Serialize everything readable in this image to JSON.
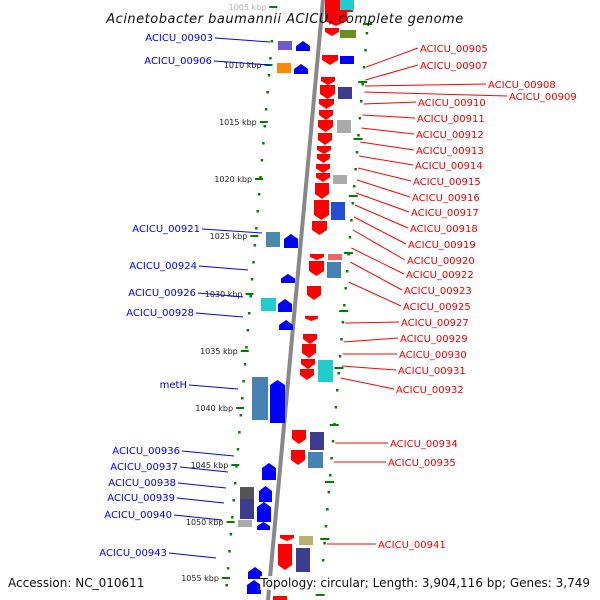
{
  "title": "Acinetobacter baumannii ACICU, complete genome",
  "accession": "Accession: NC_010611",
  "topology": "Topology: circular; Length: 3,904,116 bp; Genes: 3,749",
  "colors": {
    "forward": "#0000ff",
    "reverse": "#ff0000",
    "ticks": "#007700",
    "backbone": "#888888"
  },
  "kbp_ticks": [
    "1005 kbp",
    "1010 kbp",
    "1015 kbp",
    "1020 kbp",
    "1025 kbp",
    "1030 kbp",
    "1035 kbp",
    "1040 kbp",
    "1045 kbp",
    "1050 kbp",
    "1055 kbp"
  ],
  "left_labels": [
    "ACICU_00903",
    "ACICU_00906",
    "ACICU_00921",
    "ACICU_00924",
    "ACICU_00926",
    "ACICU_00928",
    "metH",
    "ACICU_00936",
    "ACICU_00937",
    "ACICU_00938",
    "ACICU_00939",
    "ACICU_00940",
    "ACICU_00943"
  ],
  "right_labels": [
    "ACICU_00905",
    "ACICU_00907",
    "ACICU_00908",
    "ACICU_00909",
    "ACICU_00910",
    "ACICU_00911",
    "ACICU_00912",
    "ACICU_00913",
    "ACICU_00914",
    "ACICU_00915",
    "ACICU_00916",
    "ACICU_00917",
    "ACICU_00918",
    "ACICU_00919",
    "ACICU_00920",
    "ACICU_00922",
    "ACICU_00923",
    "ACICU_00925",
    "ACICU_00927",
    "ACICU_00929",
    "ACICU_00930",
    "ACICU_00931",
    "ACICU_00932",
    "ACICU_00934",
    "ACICU_00935",
    "ACICU_00941"
  ]
}
